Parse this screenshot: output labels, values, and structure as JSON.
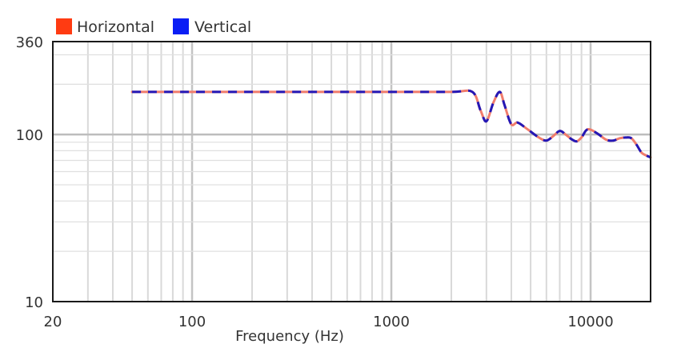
{
  "chart_data": {
    "type": "line",
    "title": "",
    "xlabel": "Frequency (Hz)",
    "ylabel": "",
    "x_scale": "log",
    "y_scale": "log",
    "xlim": [
      20,
      20000
    ],
    "ylim": [
      10,
      360
    ],
    "x_ticks": [
      20,
      100,
      1000,
      10000
    ],
    "y_ticks": [
      10,
      100,
      360
    ],
    "grid": true,
    "legend_position": "top-left",
    "series": [
      {
        "name": "Horizontal",
        "color": "#ff3b12",
        "line_color": "#f07c6c",
        "style": "solid",
        "x": [
          50,
          100,
          500,
          1000,
          2000,
          2550,
          2800,
          3000,
          3250,
          3500,
          3700,
          4000,
          4300,
          4800,
          5500,
          6000,
          6500,
          7000,
          7500,
          8000,
          8500,
          9000,
          9500,
          10000,
          11000,
          12000,
          13000,
          14000,
          15000,
          16000,
          17000,
          18000,
          19000,
          20000
        ],
        "y": [
          180,
          180,
          180,
          180,
          180,
          180,
          140,
          120,
          155,
          180,
          150,
          115,
          118,
          108,
          96,
          92,
          98,
          105,
          100,
          94,
          91,
          96,
          106,
          107,
          100,
          93,
          92,
          95,
          96,
          95,
          87,
          78,
          75,
          73
        ]
      },
      {
        "name": "Vertical",
        "color": "#0a1ef5",
        "line_color": "#2418b6",
        "style": "dashed",
        "x": [
          50,
          100,
          500,
          1000,
          2000,
          2550,
          2800,
          3000,
          3250,
          3500,
          3700,
          4000,
          4300,
          4800,
          5500,
          6000,
          6500,
          7000,
          7500,
          8000,
          8500,
          9000,
          9500,
          10000,
          11000,
          12000,
          13000,
          14000,
          15000,
          16000,
          17000,
          18000,
          19000,
          20000
        ],
        "y": [
          180,
          180,
          180,
          180,
          180,
          180,
          140,
          120,
          155,
          180,
          150,
          115,
          118,
          108,
          96,
          92,
          98,
          105,
          100,
          94,
          91,
          96,
          106,
          107,
          100,
          93,
          92,
          95,
          96,
          95,
          87,
          78,
          75,
          73
        ]
      }
    ]
  }
}
